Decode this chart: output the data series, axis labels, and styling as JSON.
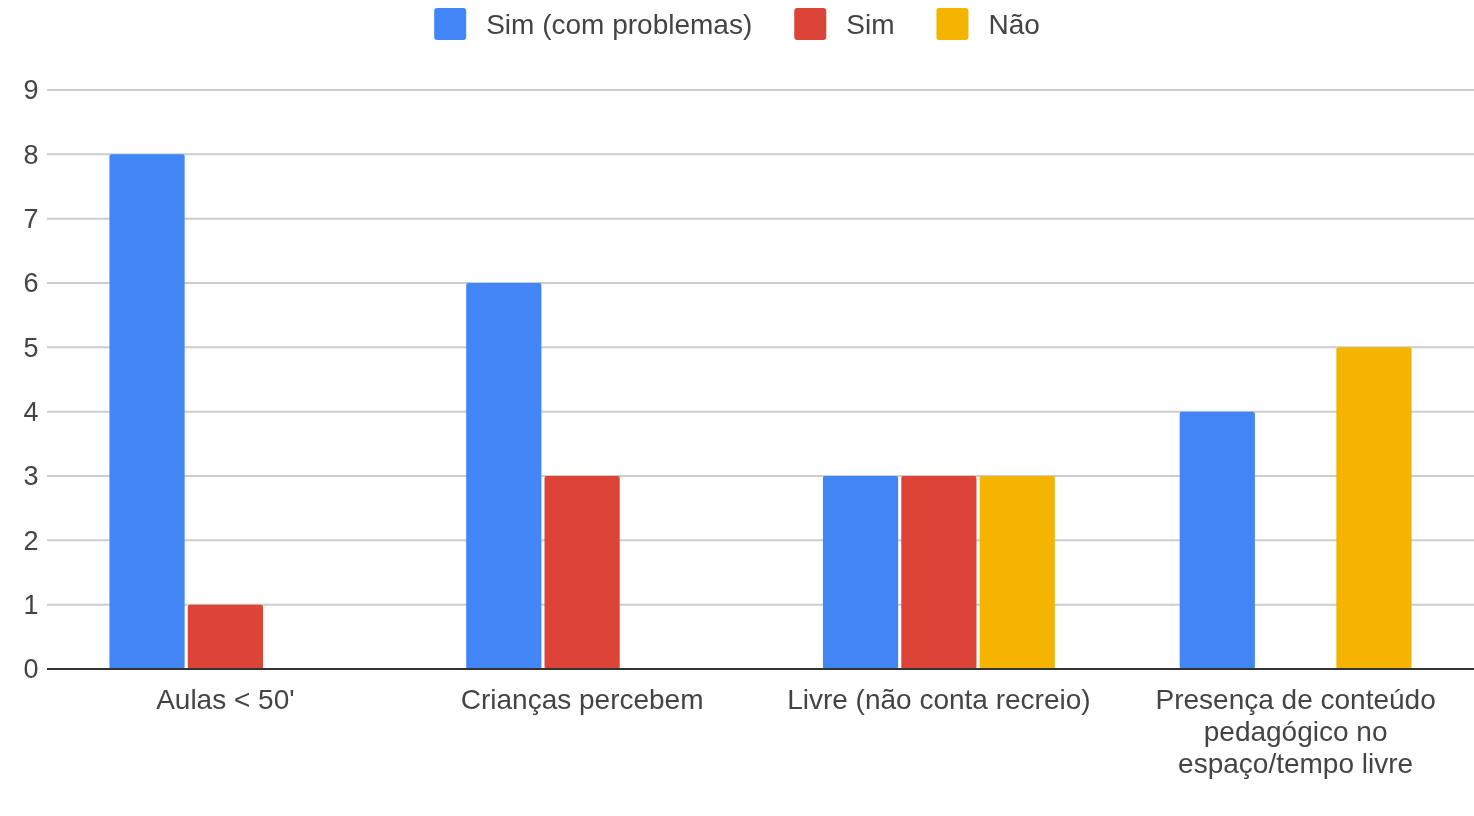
{
  "chart_data": {
    "type": "bar",
    "categories": [
      "Aulas < 50'",
      "Crianças percebem",
      "Livre (não conta recreio)",
      "Presença de conteúdo pedagógico no espaço/tempo livre"
    ],
    "series": [
      {
        "name": "Sim (com problemas)",
        "color": "#4285f4",
        "values": [
          8,
          6,
          3,
          4
        ]
      },
      {
        "name": "Sim",
        "color": "#db4437",
        "values": [
          1,
          3,
          3,
          null
        ]
      },
      {
        "name": "Não",
        "color": "#f4b400",
        "values": [
          null,
          null,
          3,
          5
        ]
      }
    ],
    "ylim": [
      0,
      9
    ],
    "yticks": [
      0,
      1,
      2,
      3,
      4,
      5,
      6,
      7,
      8,
      9
    ],
    "grid": "y",
    "legend": "top"
  }
}
